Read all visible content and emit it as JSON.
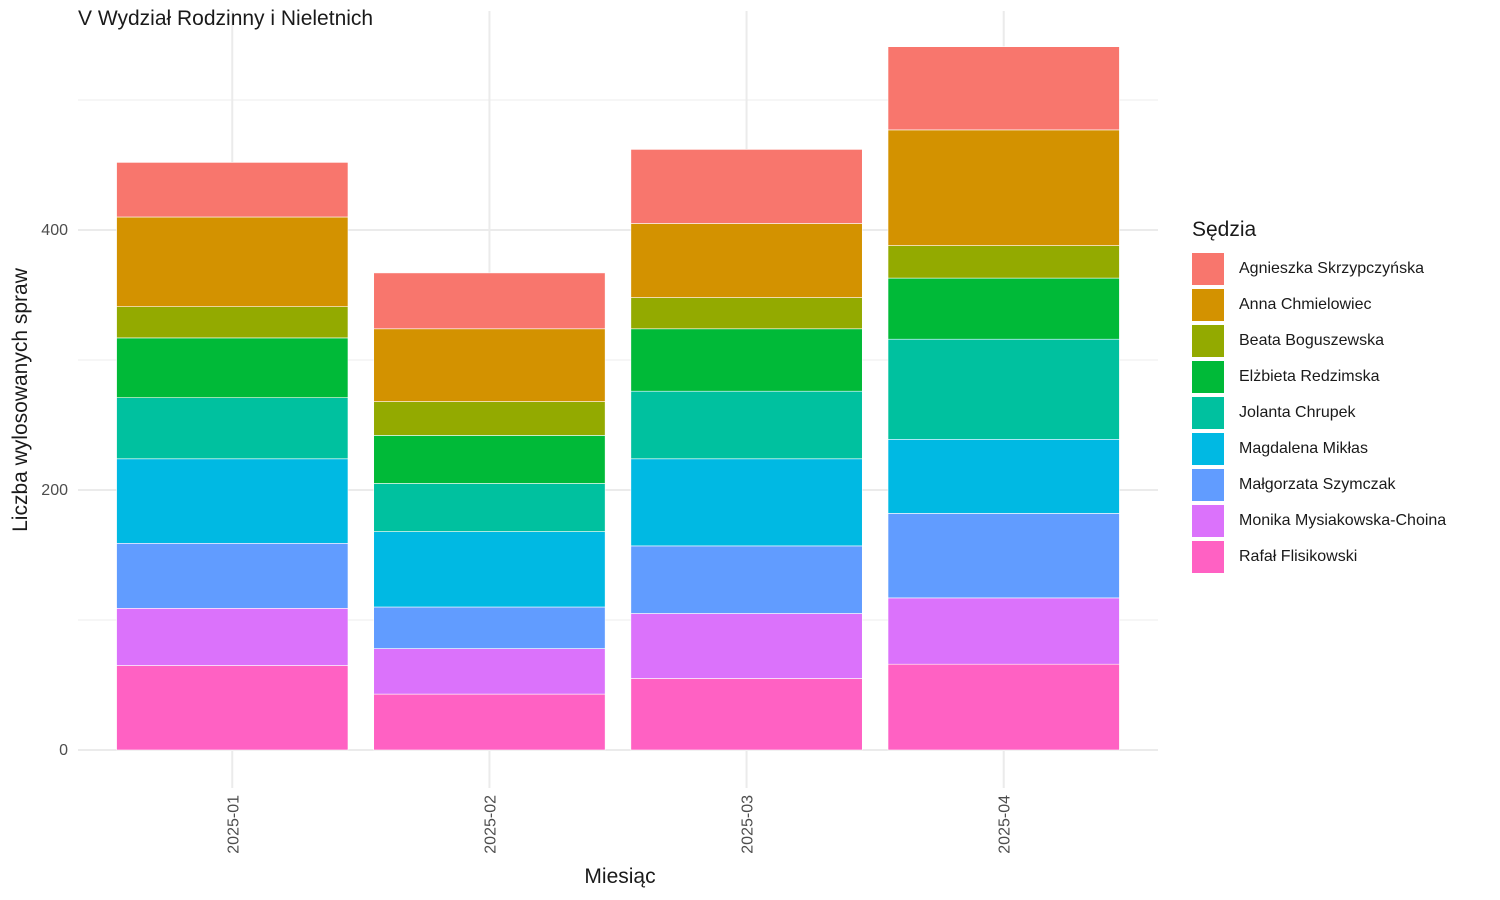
{
  "chart_data": {
    "type": "bar",
    "stacked": true,
    "title": "V Wydział Rodzinny i Nieletnich",
    "xlabel": "Miesiąc",
    "ylabel": "Liczba wylosowanych spraw",
    "categories": [
      "2025-01",
      "2025-02",
      "2025-03",
      "2025-04"
    ],
    "ylim": [
      -45,
      545
    ],
    "yticks": [
      0,
      200,
      400
    ],
    "grid": true,
    "legend_title": "Sędzia",
    "legend_position": "right",
    "series": [
      {
        "name": "Agnieszka Skrzypczyńska",
        "color": "#F8766D",
        "values": [
          42,
          43,
          57,
          64
        ]
      },
      {
        "name": "Anna Chmielowiec",
        "color": "#D39200",
        "values": [
          69,
          56,
          57,
          89
        ]
      },
      {
        "name": "Beata Boguszewska",
        "color": "#93AA00",
        "values": [
          24,
          26,
          24,
          25
        ]
      },
      {
        "name": "Elżbieta Redzimska",
        "color": "#00BA38",
        "values": [
          46,
          37,
          48,
          47
        ]
      },
      {
        "name": "Jolanta Chrupek",
        "color": "#00C19F",
        "values": [
          47,
          37,
          52,
          77
        ]
      },
      {
        "name": "Magdalena Mikłas",
        "color": "#00B9E3",
        "values": [
          65,
          58,
          67,
          57
        ]
      },
      {
        "name": "Małgorzata Szymczak",
        "color": "#619CFF",
        "values": [
          50,
          32,
          52,
          65
        ]
      },
      {
        "name": "Monika Mysiakowska-Choina",
        "color": "#DB72FB",
        "values": [
          44,
          35,
          50,
          51
        ]
      },
      {
        "name": "Rafał Flisikowski",
        "color": "#FF61C3",
        "values": [
          65,
          43,
          55,
          66
        ]
      }
    ]
  }
}
